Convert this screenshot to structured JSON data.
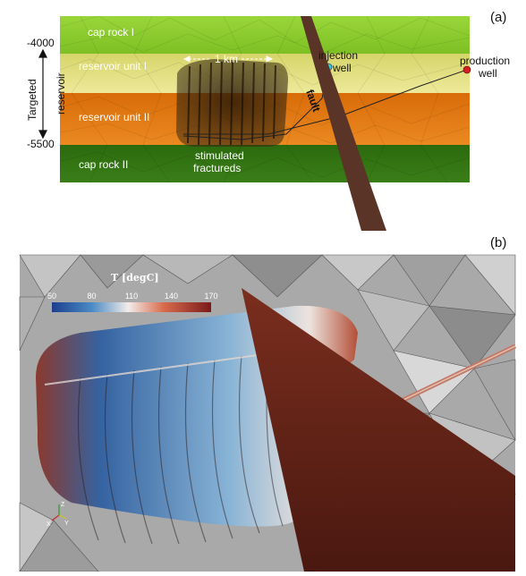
{
  "panel_a": {
    "tag": "(a)",
    "depth_top": "-4000",
    "depth_bottom": "-5500",
    "depth_axis_label": "Targeted reservoir",
    "layers": [
      "cap rock I",
      "reservoir unit I",
      "reservoir unit II",
      "cap rock II"
    ],
    "scale_label": "1 km",
    "injection_well": "injection well",
    "production_well": "production well",
    "fault_label": "fault",
    "fractures_label": "stimulated fractureds",
    "colors": {
      "cap_rock_1": "#8ccc2a",
      "reservoir_1": "#e8e28a",
      "reservoir_2": "#e07a10",
      "cap_rock_2": "#2f6e10",
      "fault": "#5a3426",
      "injection_marker": "#2fd5d5",
      "production_marker": "#d81f1f"
    }
  },
  "panel_b": {
    "tag": "(b)",
    "colorbar_title": "T [degC]",
    "colorbar_ticks": [
      "50",
      "80",
      "110",
      "140",
      "170"
    ],
    "colorbar_range": [
      50,
      170
    ],
    "axes_labels": [
      "Z",
      "Y",
      "X"
    ],
    "colors": {
      "cold": "#1c3f8f",
      "mid": "#f2ecea",
      "hot": "#7a1a1a",
      "mesh": "#9a9a9a"
    }
  }
}
